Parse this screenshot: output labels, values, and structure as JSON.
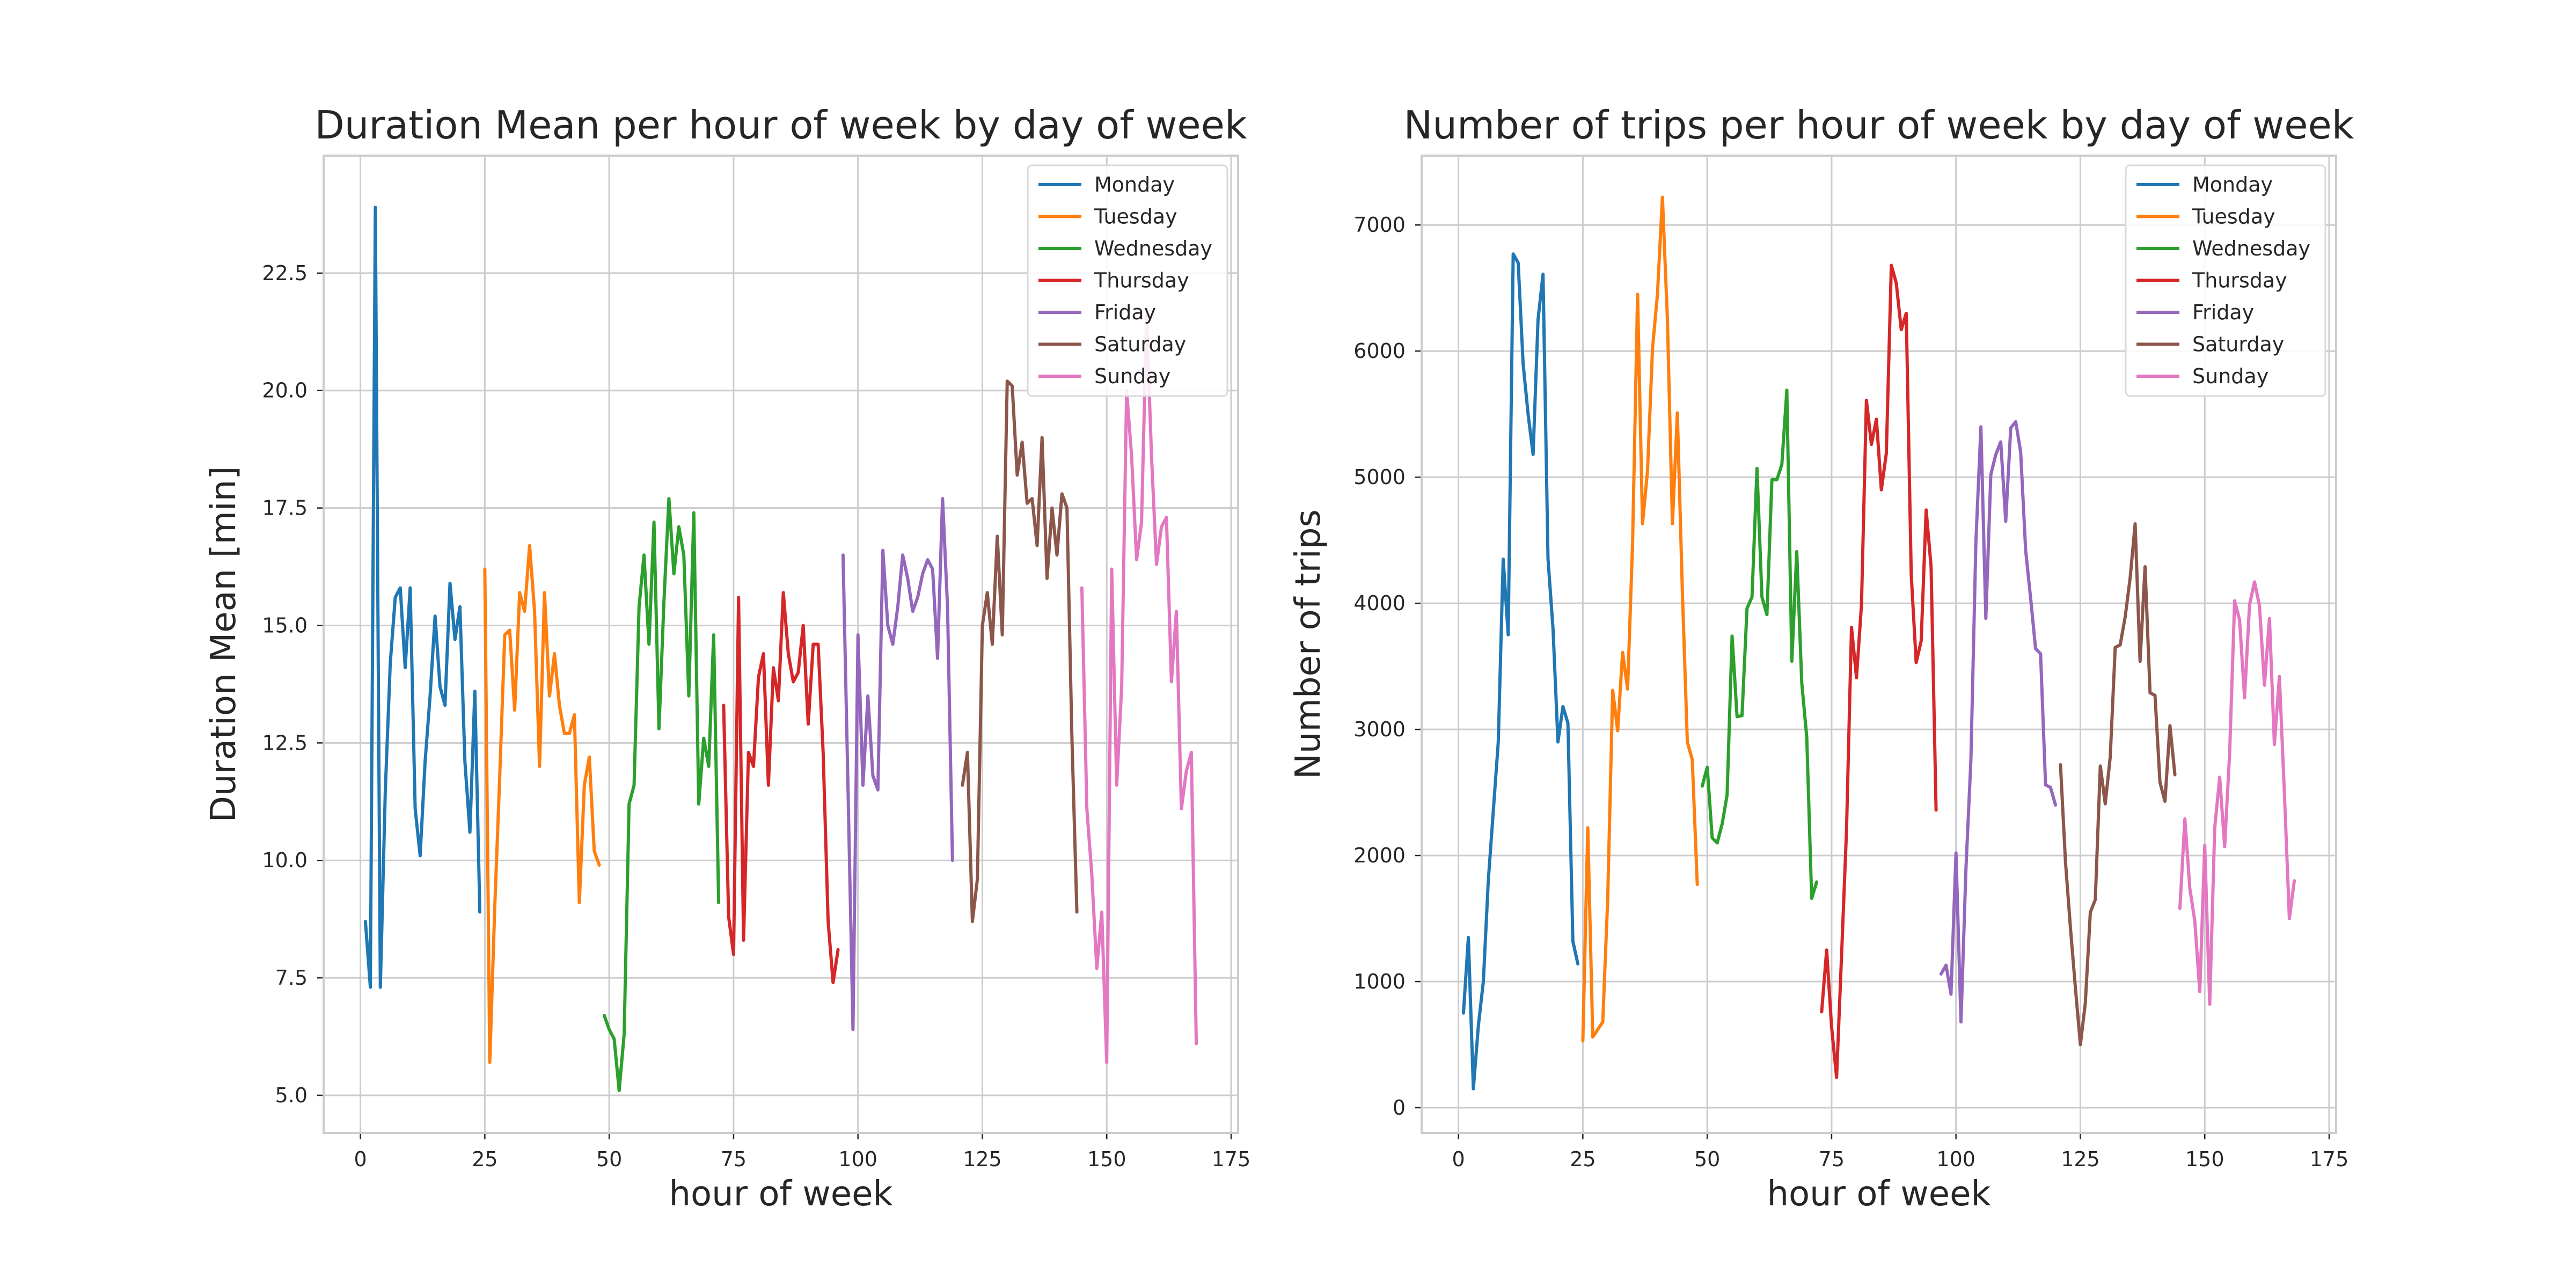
{
  "chart_data": [
    {
      "type": "line",
      "title": "Duration Mean per hour of week by day of week",
      "xlabel": "hour of week",
      "ylabel": "Duration Mean [min]",
      "xlim": [
        -7.4,
        176.4
      ],
      "ylim": [
        4.2,
        25.0
      ],
      "xticks": [
        0,
        25,
        50,
        75,
        100,
        125,
        150,
        175
      ],
      "xtick_labels": [
        "0",
        "25",
        "50",
        "75",
        "100",
        "125",
        "150",
        "175"
      ],
      "yticks": [
        5.0,
        7.5,
        10.0,
        12.5,
        15.0,
        17.5,
        20.0,
        22.5
      ],
      "ytick_labels": [
        "5.0",
        "7.5",
        "10.0",
        "12.5",
        "15.0",
        "17.5",
        "20.0",
        "22.5"
      ],
      "grid": true,
      "legend_position": "top-right",
      "series": [
        {
          "name": "Monday",
          "color": "#1f77b4",
          "x": [
            1,
            2,
            3,
            4,
            5,
            6,
            7,
            8,
            9,
            10,
            11,
            12,
            13,
            14,
            15,
            16,
            17,
            18,
            19,
            20,
            21,
            22,
            23,
            24
          ],
          "y": [
            8.7,
            7.3,
            23.9,
            7.3,
            11.5,
            14.2,
            15.6,
            15.8,
            14.1,
            15.8,
            11.1,
            10.1,
            12.1,
            13.5,
            15.2,
            13.7,
            13.3,
            15.9,
            14.7,
            15.4,
            12.1,
            10.6,
            13.6,
            8.9
          ]
        },
        {
          "name": "Tuesday",
          "color": "#ff7f0e",
          "x": [
            25,
            26,
            27,
            28,
            29,
            30,
            31,
            32,
            33,
            34,
            35,
            36,
            37,
            38,
            39,
            40,
            41,
            42,
            43,
            44,
            45,
            46,
            47,
            48
          ],
          "y": [
            16.2,
            5.7,
            9.0,
            11.8,
            14.8,
            14.9,
            13.2,
            15.7,
            15.3,
            16.7,
            15.3,
            12.0,
            15.7,
            13.5,
            14.4,
            13.3,
            12.7,
            12.7,
            13.1,
            9.1,
            11.6,
            12.2,
            10.2,
            9.9
          ]
        },
        {
          "name": "Wednesday",
          "color": "#2ca02c",
          "x": [
            49,
            50,
            51,
            52,
            53,
            54,
            55,
            56,
            57,
            58,
            59,
            60,
            61,
            62,
            63,
            64,
            65,
            66,
            67,
            68,
            69,
            70,
            71,
            72
          ],
          "y": [
            6.7,
            6.4,
            6.2,
            5.1,
            6.3,
            11.2,
            11.6,
            15.4,
            16.5,
            14.6,
            17.2,
            12.8,
            15.5,
            17.7,
            16.1,
            17.1,
            16.5,
            13.5,
            17.4,
            11.2,
            12.6,
            12.0,
            14.8,
            9.1
          ]
        },
        {
          "name": "Thursday",
          "color": "#d62728",
          "x": [
            73,
            74,
            75,
            76,
            77,
            78,
            79,
            80,
            81,
            82,
            83,
            84,
            85,
            86,
            87,
            88,
            89,
            90,
            91,
            92,
            93,
            94,
            95,
            96
          ],
          "y": [
            13.3,
            8.8,
            8.0,
            15.6,
            8.3,
            12.3,
            12.0,
            13.9,
            14.4,
            11.6,
            14.1,
            13.4,
            15.7,
            14.4,
            13.8,
            14.0,
            15.0,
            12.9,
            14.6,
            14.6,
            12.3,
            8.7,
            7.4,
            8.1
          ]
        },
        {
          "name": "Friday",
          "color": "#9467bd",
          "x": [
            97,
            98,
            99,
            100,
            101,
            102,
            103,
            104,
            105,
            106,
            107,
            108,
            109,
            110,
            111,
            112,
            113,
            114,
            115,
            116,
            117,
            118,
            119,
            120
          ],
          "y": [
            16.5,
            11.5,
            6.4,
            14.8,
            11.6,
            13.5,
            11.8,
            11.5,
            16.6,
            15.0,
            14.6,
            15.4,
            16.5,
            16.0,
            15.3,
            15.6,
            16.1,
            16.4,
            16.2,
            14.3,
            17.7,
            15.4,
            10.0,
            null
          ]
        },
        {
          "name": "Saturday",
          "color": "#8c564b",
          "x": [
            121,
            122,
            123,
            124,
            125,
            126,
            127,
            128,
            129,
            130,
            131,
            132,
            133,
            134,
            135,
            136,
            137,
            138,
            139,
            140,
            141,
            142,
            143,
            144
          ],
          "y": [
            11.6,
            12.3,
            8.7,
            9.6,
            15.0,
            15.7,
            14.6,
            16.9,
            14.8,
            20.2,
            20.1,
            18.2,
            18.9,
            17.6,
            17.7,
            16.7,
            19.0,
            16.0,
            17.5,
            16.5,
            17.8,
            17.5,
            12.6,
            8.9
          ]
        },
        {
          "name": "Sunday",
          "color": "#e377c2",
          "x": [
            145,
            146,
            147,
            148,
            149,
            150,
            151,
            152,
            153,
            154,
            155,
            156,
            157,
            158,
            159,
            160,
            161,
            162,
            163,
            164,
            165,
            166,
            167,
            168
          ],
          "y": [
            15.8,
            11.1,
            9.7,
            7.7,
            8.9,
            5.7,
            16.2,
            11.6,
            13.7,
            20.0,
            18.6,
            16.4,
            17.2,
            21.6,
            18.6,
            16.3,
            17.1,
            17.3,
            13.8,
            15.3,
            11.1,
            11.9,
            12.3,
            6.1
          ]
        }
      ]
    },
    {
      "type": "line",
      "title": "Number of trips per hour of week by day of week",
      "xlabel": "hour of week",
      "ylabel": "Number of trips",
      "xlim": [
        -7.4,
        176.4
      ],
      "ylim": [
        -200,
        7550
      ],
      "xticks": [
        0,
        25,
        50,
        75,
        100,
        125,
        150,
        175
      ],
      "xtick_labels": [
        "0",
        "25",
        "50",
        "75",
        "100",
        "125",
        "150",
        "175"
      ],
      "yticks": [
        0,
        1000,
        2000,
        3000,
        4000,
        5000,
        6000,
        7000
      ],
      "ytick_labels": [
        "0",
        "1000",
        "2000",
        "3000",
        "4000",
        "5000",
        "6000",
        "7000"
      ],
      "grid": true,
      "legend_position": "top-right",
      "series": [
        {
          "name": "Monday",
          "color": "#1f77b4",
          "x": [
            1,
            2,
            3,
            4,
            5,
            6,
            7,
            8,
            9,
            10,
            11,
            12,
            13,
            14,
            15,
            16,
            17,
            18,
            19,
            20,
            21,
            22,
            23,
            24
          ],
          "y": [
            750,
            1350,
            150,
            650,
            1000,
            1800,
            2350,
            2900,
            4350,
            3750,
            6770,
            6700,
            5900,
            5500,
            5180,
            6250,
            6610,
            4350,
            3800,
            2900,
            3180,
            3050,
            1320,
            1140
          ]
        },
        {
          "name": "Tuesday",
          "color": "#ff7f0e",
          "x": [
            25,
            26,
            27,
            28,
            29,
            30,
            31,
            32,
            33,
            34,
            35,
            36,
            37,
            38,
            39,
            40,
            41,
            42,
            43,
            44,
            45,
            46,
            47,
            48
          ],
          "y": [
            530,
            2220,
            560,
            620,
            680,
            1650,
            3310,
            2990,
            3610,
            3320,
            4480,
            6450,
            4630,
            5050,
            6020,
            6450,
            7220,
            6250,
            4630,
            5510,
            4100,
            2900,
            2760,
            1770
          ]
        },
        {
          "name": "Wednesday",
          "color": "#2ca02c",
          "x": [
            49,
            50,
            51,
            52,
            53,
            54,
            55,
            56,
            57,
            58,
            59,
            60,
            61,
            62,
            63,
            64,
            65,
            66,
            67,
            68,
            69,
            70,
            71,
            72
          ],
          "y": [
            2550,
            2700,
            2140,
            2100,
            2250,
            2480,
            3740,
            3100,
            3110,
            3960,
            4050,
            5070,
            4050,
            3910,
            4980,
            4980,
            5100,
            5690,
            3540,
            4410,
            3370,
            2940,
            1660,
            1790
          ]
        },
        {
          "name": "Thursday",
          "color": "#d62728",
          "x": [
            73,
            74,
            75,
            76,
            77,
            78,
            79,
            80,
            81,
            82,
            83,
            84,
            85,
            86,
            87,
            88,
            89,
            90,
            91,
            92,
            93,
            94,
            95,
            96
          ],
          "y": [
            760,
            1250,
            640,
            240,
            1210,
            2200,
            3810,
            3410,
            3990,
            5610,
            5260,
            5460,
            4900,
            5190,
            6680,
            6540,
            6170,
            6300,
            4230,
            3530,
            3700,
            4740,
            4290,
            2360
          ]
        },
        {
          "name": "Friday",
          "color": "#9467bd",
          "x": [
            97,
            98,
            99,
            100,
            101,
            102,
            103,
            104,
            105,
            106,
            107,
            108,
            109,
            110,
            111,
            112,
            113,
            114,
            115,
            116,
            117,
            118,
            119,
            120
          ],
          "y": [
            1060,
            1130,
            900,
            2020,
            680,
            1890,
            2760,
            4490,
            5400,
            3880,
            5020,
            5180,
            5280,
            4650,
            5390,
            5440,
            5200,
            4420,
            4040,
            3640,
            3600,
            2560,
            2540,
            2400
          ]
        },
        {
          "name": "Saturday",
          "color": "#8c564b",
          "x": [
            121,
            122,
            123,
            124,
            125,
            126,
            127,
            128,
            129,
            130,
            131,
            132,
            133,
            134,
            135,
            136,
            137,
            138,
            139,
            140,
            141,
            142,
            143,
            144
          ],
          "y": [
            2720,
            1950,
            1430,
            950,
            500,
            830,
            1550,
            1650,
            2710,
            2410,
            2780,
            3650,
            3670,
            3890,
            4200,
            4630,
            3540,
            4290,
            3290,
            3270,
            2580,
            2430,
            3030,
            2640
          ]
        },
        {
          "name": "Sunday",
          "color": "#e377c2",
          "x": [
            145,
            146,
            147,
            148,
            149,
            150,
            151,
            152,
            153,
            154,
            155,
            156,
            157,
            158,
            159,
            160,
            161,
            162,
            163,
            164,
            165,
            166,
            167,
            168
          ],
          "y": [
            1580,
            2290,
            1740,
            1480,
            920,
            2080,
            820,
            2220,
            2620,
            2070,
            2810,
            4020,
            3870,
            3250,
            3990,
            4170,
            3980,
            3350,
            3880,
            2880,
            3420,
            2500,
            1500,
            1800
          ]
        }
      ]
    }
  ]
}
